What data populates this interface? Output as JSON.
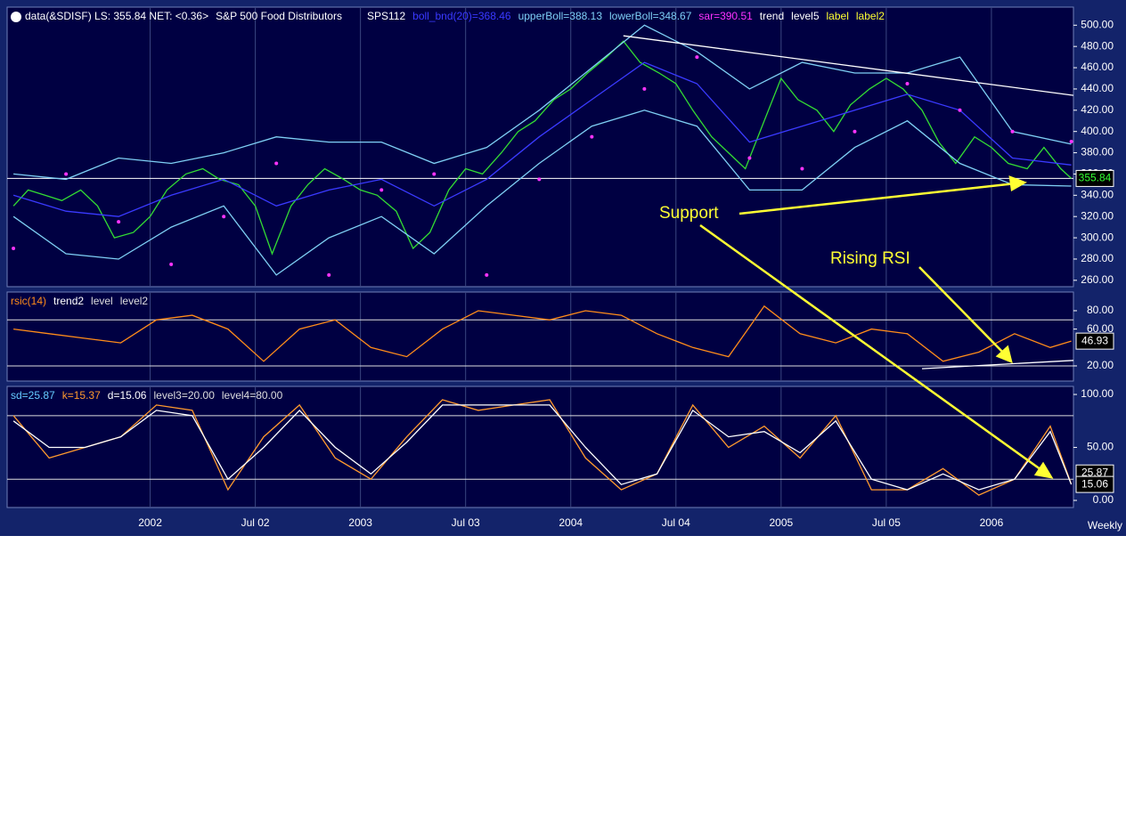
{
  "chart_data": [
    {
      "type": "line",
      "title": "data(&SDISF) LS: 355.84  NET: <0.36>",
      "subtitle": "S&P 500 Food Distributors",
      "extra_labels": [
        {
          "text": "SPS112",
          "color": "#ffffff"
        }
      ],
      "xlim": [
        2001.32,
        2006.39
      ],
      "ylim": [
        254,
        517
      ],
      "yticks": [
        {
          "value": 260,
          "label": "260.00"
        },
        {
          "value": 280,
          "label": "280.00"
        },
        {
          "value": 300,
          "label": "300.00"
        },
        {
          "value": 320,
          "label": "320.00"
        },
        {
          "value": 340,
          "label": "340.00"
        },
        {
          "value": 360,
          "label": "360.00"
        },
        {
          "value": 380,
          "label": "380.00"
        },
        {
          "value": 400,
          "label": "400.00"
        },
        {
          "value": 420,
          "label": "420.00"
        },
        {
          "value": 440,
          "label": "440.00"
        },
        {
          "value": 460,
          "label": "460.00"
        },
        {
          "value": 480,
          "label": "480.00"
        },
        {
          "value": 500,
          "label": "500.00"
        }
      ],
      "series": [
        {
          "color": "#33dd33",
          "style": "line",
          "x": [
            2001.35,
            2001.42,
            2001.5,
            2001.58,
            2001.67,
            2001.75,
            2001.83,
            2001.92,
            2002.0,
            2002.08,
            2002.17,
            2002.25,
            2002.33,
            2002.42,
            2002.5,
            2002.58,
            2002.67,
            2002.75,
            2002.83,
            2002.92,
            2003.0,
            2003.08,
            2003.17,
            2003.25,
            2003.33,
            2003.42,
            2003.5,
            2003.58,
            2003.67,
            2003.75,
            2003.83,
            2003.92,
            2004.0,
            2004.08,
            2004.17,
            2004.25,
            2004.33,
            2004.42,
            2004.5,
            2004.58,
            2004.67,
            2004.75,
            2004.83,
            2004.92,
            2005.0,
            2005.08,
            2005.17,
            2005.25,
            2005.33,
            2005.42,
            2005.5,
            2005.58,
            2005.67,
            2005.75,
            2005.83,
            2005.92,
            2006.0,
            2006.08,
            2006.17,
            2006.25,
            2006.33,
            2006.38
          ],
          "values": [
            330,
            345,
            340,
            335,
            345,
            330,
            300,
            305,
            320,
            345,
            360,
            365,
            355,
            350,
            330,
            285,
            330,
            350,
            365,
            355,
            345,
            340,
            325,
            290,
            305,
            345,
            365,
            360,
            380,
            400,
            410,
            430,
            440,
            455,
            470,
            485,
            465,
            455,
            445,
            420,
            395,
            380,
            365,
            410,
            450,
            430,
            420,
            400,
            425,
            440,
            450,
            440,
            420,
            390,
            370,
            395,
            385,
            370,
            365,
            385,
            365,
            355.84
          ]
        },
        {
          "name": "boll_bnd(20)=368.46",
          "color": "#3a3aff",
          "style": "line",
          "x": [
            2001.35,
            2001.6,
            2001.85,
            2002.1,
            2002.35,
            2002.6,
            2002.85,
            2003.1,
            2003.35,
            2003.6,
            2003.85,
            2004.1,
            2004.35,
            2004.6,
            2004.85,
            2005.1,
            2005.35,
            2005.6,
            2005.85,
            2006.1,
            2006.38
          ],
          "values": [
            340,
            325,
            320,
            340,
            355,
            330,
            345,
            355,
            330,
            355,
            395,
            430,
            465,
            445,
            390,
            405,
            420,
            435,
            420,
            375,
            368.46
          ]
        },
        {
          "name": "upperBoll=388.13",
          "color": "#7fd0f5",
          "style": "line",
          "x": [
            2001.35,
            2001.6,
            2001.85,
            2002.1,
            2002.35,
            2002.6,
            2002.85,
            2003.1,
            2003.35,
            2003.6,
            2003.85,
            2004.1,
            2004.35,
            2004.6,
            2004.85,
            2005.1,
            2005.35,
            2005.6,
            2005.85,
            2006.1,
            2006.38
          ],
          "values": [
            360,
            355,
            375,
            370,
            380,
            395,
            390,
            390,
            370,
            385,
            420,
            460,
            500,
            475,
            440,
            465,
            455,
            455,
            470,
            400,
            388.13
          ]
        },
        {
          "name": "lowerBoll=348.67",
          "color": "#7fd0f5",
          "style": "line",
          "x": [
            2001.35,
            2001.6,
            2001.85,
            2002.1,
            2002.35,
            2002.6,
            2002.85,
            2003.1,
            2003.35,
            2003.6,
            2003.85,
            2004.1,
            2004.35,
            2004.6,
            2004.85,
            2005.1,
            2005.35,
            2005.6,
            2005.85,
            2006.1,
            2006.38
          ],
          "values": [
            320,
            285,
            280,
            310,
            330,
            265,
            300,
            320,
            285,
            330,
            370,
            405,
            420,
            405,
            345,
            345,
            385,
            410,
            370,
            350,
            348.67
          ]
        },
        {
          "name": "sar=390.51",
          "color": "#ff33ff",
          "style": "dots",
          "x": [
            2001.35,
            2001.6,
            2001.85,
            2002.1,
            2002.35,
            2002.6,
            2002.85,
            2003.1,
            2003.35,
            2003.6,
            2003.85,
            2004.1,
            2004.35,
            2004.6,
            2004.85,
            2005.1,
            2005.35,
            2005.6,
            2005.85,
            2006.1,
            2006.38
          ],
          "values": [
            290,
            360,
            315,
            275,
            320,
            370,
            265,
            345,
            360,
            265,
            355,
            395,
            440,
            470,
            375,
            365,
            400,
            445,
            420,
            400,
            390.51
          ]
        },
        {
          "name": "trend",
          "color": "#ffffff",
          "style": "line",
          "x": [
            2004.25,
            2006.39
          ],
          "values": [
            490,
            434
          ]
        }
      ],
      "levels": [
        {
          "name": "level5",
          "value": 355.84,
          "color": "#ffffff"
        }
      ],
      "annotations": [
        {
          "name": "label",
          "text": "Support",
          "color": "#ffff33"
        },
        {
          "name": "label2",
          "text": "Rising RSI",
          "color": "#ffff33"
        }
      ],
      "last_labels": [
        {
          "value": 355.84,
          "label": "355.84",
          "color": "#33ff33"
        }
      ]
    },
    {
      "type": "line",
      "xlim": [
        2001.32,
        2006.39
      ],
      "ylim": [
        3.5,
        100.3
      ],
      "yticks": [
        {
          "value": 20,
          "label": "20.00"
        },
        {
          "value": 60,
          "label": "60.00"
        },
        {
          "value": 80,
          "label": "80.00"
        }
      ],
      "series": [
        {
          "name": "rsic(14)",
          "color": "#ff8c1a",
          "style": "line",
          "x": [
            2001.35,
            2001.52,
            2001.69,
            2001.86,
            2002.03,
            2002.2,
            2002.37,
            2002.54,
            2002.71,
            2002.88,
            2003.05,
            2003.22,
            2003.39,
            2003.56,
            2003.73,
            2003.9,
            2004.07,
            2004.24,
            2004.41,
            2004.58,
            2004.75,
            2004.92,
            2005.09,
            2005.26,
            2005.43,
            2005.6,
            2005.77,
            2005.94,
            2006.11,
            2006.28,
            2006.38
          ],
          "values": [
            60,
            55,
            50,
            45,
            70,
            75,
            60,
            25,
            60,
            70,
            40,
            30,
            60,
            80,
            75,
            70,
            80,
            75,
            55,
            40,
            30,
            85,
            55,
            45,
            60,
            55,
            25,
            35,
            55,
            40,
            46.93
          ]
        },
        {
          "name": "trend2",
          "color": "#ffffff",
          "style": "line",
          "x": [
            2005.67,
            2006.39
          ],
          "values": [
            17,
            26
          ]
        }
      ],
      "levels": [
        {
          "name": "level",
          "value": 70,
          "color": "#dddddd"
        },
        {
          "name": "level2",
          "value": 20,
          "color": "#dddddd"
        }
      ],
      "last_labels": [
        {
          "value": 46.93,
          "label": "46.93",
          "color": "#ffffff"
        }
      ]
    },
    {
      "type": "line",
      "xlim": [
        2001.32,
        2006.39
      ],
      "ylim": [
        -6.7,
        107.6
      ],
      "yticks": [
        {
          "value": 0,
          "label": "0.00"
        },
        {
          "value": 50,
          "label": "50.00"
        },
        {
          "value": 100,
          "label": "100.00"
        }
      ],
      "xticks": [
        {
          "value": 2002.0,
          "label": "2002"
        },
        {
          "value": 2002.5,
          "label": "Jul 02"
        },
        {
          "value": 2003.0,
          "label": "2003"
        },
        {
          "value": 2003.5,
          "label": "Jul 03"
        },
        {
          "value": 2004.0,
          "label": "2004"
        },
        {
          "value": 2004.5,
          "label": "Jul 04"
        },
        {
          "value": 2005.0,
          "label": "2005"
        },
        {
          "value": 2005.5,
          "label": "Jul 05"
        },
        {
          "value": 2006.0,
          "label": "2006"
        }
      ],
      "xlabel": "Weekly",
      "series": [
        {
          "name": "k=15.37",
          "color": "#ff9a2e",
          "style": "line",
          "x": [
            2001.35,
            2001.52,
            2001.69,
            2001.86,
            2002.03,
            2002.2,
            2002.37,
            2002.54,
            2002.71,
            2002.88,
            2003.05,
            2003.22,
            2003.39,
            2003.56,
            2003.73,
            2003.9,
            2004.07,
            2004.24,
            2004.41,
            2004.58,
            2004.75,
            2004.92,
            2005.09,
            2005.26,
            2005.43,
            2005.6,
            2005.77,
            2005.94,
            2006.11,
            2006.28,
            2006.38
          ],
          "values": [
            80,
            40,
            50,
            60,
            90,
            85,
            10,
            60,
            90,
            40,
            20,
            60,
            95,
            85,
            90,
            95,
            40,
            10,
            25,
            90,
            50,
            70,
            40,
            80,
            10,
            10,
            30,
            5,
            20,
            70,
            15.37
          ]
        },
        {
          "name": "d=15.06",
          "color": "#ffffff",
          "style": "line",
          "x": [
            2001.35,
            2001.52,
            2001.69,
            2001.86,
            2002.03,
            2002.2,
            2002.37,
            2002.54,
            2002.71,
            2002.88,
            2003.05,
            2003.22,
            2003.39,
            2003.56,
            2003.73,
            2003.9,
            2004.07,
            2004.24,
            2004.41,
            2004.58,
            2004.75,
            2004.92,
            2005.09,
            2005.26,
            2005.43,
            2005.6,
            2005.77,
            2005.94,
            2006.11,
            2006.28,
            2006.38
          ],
          "values": [
            75,
            50,
            50,
            60,
            85,
            80,
            20,
            50,
            85,
            50,
            25,
            55,
            90,
            90,
            90,
            90,
            50,
            15,
            25,
            85,
            60,
            65,
            45,
            75,
            20,
            10,
            25,
            10,
            20,
            65,
            15.06
          ]
        }
      ],
      "extra_labels": [
        {
          "text": "sd=25.87",
          "color": "#66ccff"
        }
      ],
      "levels": [
        {
          "name": "level3=20.00",
          "value": 20,
          "color": "#dddddd"
        },
        {
          "name": "level4=80.00",
          "value": 80,
          "color": "#dddddd"
        }
      ],
      "last_labels": [
        {
          "value": 25.87,
          "label": "25.87",
          "color": "#ffffff"
        },
        {
          "value": 15.06,
          "label": "15.06",
          "color": "#ffffff"
        }
      ]
    }
  ]
}
